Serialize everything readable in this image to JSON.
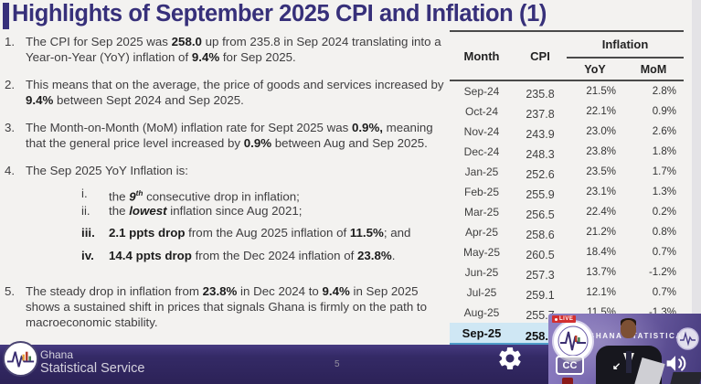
{
  "slide": {
    "title": "Highlights of September 2025 CPI and Inflation (1)",
    "page_number": "5"
  },
  "points": [
    {
      "num": "1.",
      "segments": [
        {
          "t": "The CPI for Sep 2025 was "
        },
        {
          "t": "258.0",
          "b": true
        },
        {
          "t": " up from 235.8 in Sep 2024 translating into a Year-on-Year (YoY) inflation of  "
        },
        {
          "t": "9.4%",
          "b": true
        },
        {
          "t": " for Sep 2025."
        }
      ]
    },
    {
      "num": "2.",
      "segments": [
        {
          "t": "This means that on the average, the price of goods and services increased by "
        },
        {
          "t": "9.4%",
          "b": true
        },
        {
          "t": " between Sept 2024 and Sep 2025."
        }
      ]
    },
    {
      "num": "3.",
      "segments": [
        {
          "t": "The Month-on-Month (MoM) inflation rate for Sept 2025 was  "
        },
        {
          "t": "0.9%,",
          "b": true
        },
        {
          "t": " meaning that the general price level increased by "
        },
        {
          "t": "0.9%",
          "b": true
        },
        {
          "t": " between Aug and Sep 2025."
        }
      ]
    },
    {
      "num": "4.",
      "segments": [
        {
          "t": "The Sep 2025  YoY Inflation is:"
        }
      ],
      "subs": [
        {
          "num": "i.",
          "segments": [
            {
              "t": "the "
            },
            {
              "t": "9",
              "b": true,
              "i": true
            },
            {
              "t": "th",
              "b": true,
              "i": true,
              "sup": true
            },
            {
              "t": " consecutive drop in inflation;"
            }
          ]
        },
        {
          "num": "ii.",
          "segments": [
            {
              "t": "the "
            },
            {
              "t": "lowest",
              "b": true,
              "i": true
            },
            {
              "t": " inflation since Aug 2021;"
            }
          ]
        },
        {
          "num": "iii.",
          "bold_num": true,
          "segments": [
            {
              "t": "2.1 ppts drop",
              "b": true
            },
            {
              "t": " from the Aug 2025 inflation of "
            },
            {
              "t": "11.5%",
              "b": true
            },
            {
              "t": "; and"
            }
          ]
        },
        {
          "num": "iv.",
          "bold_num": true,
          "segments": [
            {
              "t": "14.4 ppts drop",
              "b": true
            },
            {
              "t": " from the Dec 2024 inflation of "
            },
            {
              "t": "23.8%",
              "b": true
            },
            {
              "t": "."
            }
          ]
        }
      ]
    },
    {
      "num": "5.",
      "segments": [
        {
          "t": "The steady drop in inflation from "
        },
        {
          "t": "23.8%",
          "b": true
        },
        {
          "t": " in Dec 2024 to "
        },
        {
          "t": "9.4%",
          "b": true
        },
        {
          "t": " in Sep 2025 shows a sustained shift in prices that signals Ghana is firmly on the path to macroeconomic stability."
        }
      ]
    }
  ],
  "table": {
    "headers": {
      "month": "Month",
      "cpi": "CPI",
      "inflation": "Inflation",
      "yoy": "YoY",
      "mom": "MoM"
    },
    "rows": [
      {
        "month": "Sep-24",
        "cpi": "235.8",
        "yoy": "21.5%",
        "mom": "2.8%"
      },
      {
        "month": "Oct-24",
        "cpi": "237.8",
        "yoy": "22.1%",
        "mom": "0.9%"
      },
      {
        "month": "Nov-24",
        "cpi": "243.9",
        "yoy": "23.0%",
        "mom": "2.6%"
      },
      {
        "month": "Dec-24",
        "cpi": "248.3",
        "yoy": "23.8%",
        "mom": "1.8%"
      },
      {
        "month": "Jan-25",
        "cpi": "252.6",
        "yoy": "23.5%",
        "mom": "1.7%"
      },
      {
        "month": "Feb-25",
        "cpi": "255.9",
        "yoy": "23.1%",
        "mom": "1.3%"
      },
      {
        "month": "Mar-25",
        "cpi": "256.5",
        "yoy": "22.4%",
        "mom": "0.2%"
      },
      {
        "month": "Apr-25",
        "cpi": "258.6",
        "yoy": "21.2%",
        "mom": "0.8%"
      },
      {
        "month": "May-25",
        "cpi": "260.5",
        "yoy": "18.4%",
        "mom": "0.7%"
      },
      {
        "month": "Jun-25",
        "cpi": "257.3",
        "yoy": "13.7%",
        "mom": "-1.2%"
      },
      {
        "month": "Jul-25",
        "cpi": "259.1",
        "yoy": "12.1%",
        "mom": "0.7%"
      },
      {
        "month": "Aug-25",
        "cpi": "255.7",
        "yoy": "11.5%",
        "mom": "-1.3%"
      },
      {
        "month": "Sep-25",
        "cpi": "258.0",
        "yoy": "",
        "mom": "",
        "highlight": true
      }
    ]
  },
  "footer": {
    "org_line1": "Ghana",
    "org_line2": "Statistical Service",
    "page_number": "5"
  },
  "video_overlay": {
    "live_badge": "LIVE",
    "backdrop_text": "GHANA STATISTICAL",
    "cc_label": "CC",
    "minimize_arrow": "↙"
  },
  "colors": {
    "title_color": "#37307a",
    "body_text": "#3e3d3f",
    "bold_text": "#1c1c1c",
    "slide_bg": "#f3f2f0",
    "strip": "#e4e3e6",
    "tline": "#4a4a4a",
    "hl_row": "#cfe7f4",
    "hl_line": "#4e9cc9",
    "footer_bg": "#342a66",
    "footer_hi": "#463a80",
    "footer_text": "#d5d2de",
    "page_gray": "#94909f",
    "video_purple": "#7464ab",
    "live_red": "#d32f2f"
  }
}
